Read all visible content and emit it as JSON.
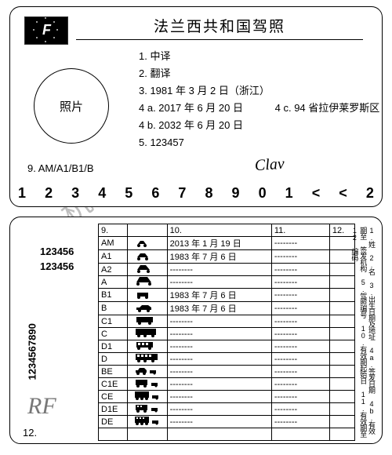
{
  "watermark": "杭州中译翻译有限公司",
  "front": {
    "flag_letter": "F",
    "title": "法兰西共和国驾照",
    "photo_label": "照片",
    "lines": {
      "l1": "1.   中译",
      "l2": "2.   翻译",
      "l3": "3.   1981 年 3 月 2 日（浙江）",
      "l4a": "4 a. 2017 年 6 月 20 日",
      "l4c": "4 c. 94 省拉伊莱罗斯区",
      "l4b": "4 b. 2032 年 6 月 20 日",
      "l5": "5.   123457"
    },
    "cat9": "9. AM/A1/B1/B",
    "signature": "Clav",
    "bottom_digits": [
      "1",
      "2",
      "3",
      "4",
      "5",
      "6",
      "7",
      "8",
      "9",
      "0",
      "1",
      "<",
      "<",
      "2"
    ]
  },
  "back": {
    "vertical_number": "1234567890",
    "ids": [
      "123456",
      "123456"
    ],
    "rf": "RF",
    "corner12": "12.",
    "headers": {
      "c9": "9.",
      "c10": "10.",
      "c11": "11.",
      "c12": "12."
    },
    "rows": [
      {
        "code": "AM",
        "icon": "moped",
        "d10": "2013 年 1 月 19 日",
        "d11": "--------"
      },
      {
        "code": "A1",
        "icon": "moto-sm",
        "d10": "1983 年 7 月 6 日",
        "d11": "--------"
      },
      {
        "code": "A2",
        "icon": "moto",
        "d10": "--------",
        "d11": "--------"
      },
      {
        "code": "A",
        "icon": "moto-lg",
        "d10": "--------",
        "d11": "--------"
      },
      {
        "code": "B1",
        "icon": "quad",
        "d10": "1983 年 7 月 6 日",
        "d11": "--------"
      },
      {
        "code": "B",
        "icon": "car",
        "d10": "1983 年 7 月 6 日",
        "d11": "--------"
      },
      {
        "code": "C1",
        "icon": "van",
        "d10": "--------",
        "d11": "--------"
      },
      {
        "code": "C",
        "icon": "truck",
        "d10": "--------",
        "d11": "--------"
      },
      {
        "code": "D1",
        "icon": "minibus",
        "d10": "--------",
        "d11": "--------"
      },
      {
        "code": "D",
        "icon": "bus",
        "d10": "--------",
        "d11": "--------"
      },
      {
        "code": "BE",
        "icon": "car-tr",
        "d10": "--------",
        "d11": "--------"
      },
      {
        "code": "C1E",
        "icon": "van-tr",
        "d10": "--------",
        "d11": "--------"
      },
      {
        "code": "CE",
        "icon": "truck-tr",
        "d10": "--------",
        "d11": "--------"
      },
      {
        "code": "D1E",
        "icon": "minibus-tr",
        "d10": "--------",
        "d11": "--------"
      },
      {
        "code": "DE",
        "icon": "bus-tr",
        "d10": "--------",
        "d11": "--------"
      },
      {
        "code": "",
        "icon": "",
        "d10": "",
        "d11": ""
      }
    ],
    "legend": "1.姓 2.名 3.出生日期及地址 4a.签发日期 4b.有效期至 签发机构 5.驾照编号 10.有效期起始日 11.有效期至 12.编码"
  },
  "colors": {
    "fg": "#000000",
    "bg": "#ffffff",
    "wm": "rgba(0,0,0,0.25)",
    "rf": "#777777"
  }
}
